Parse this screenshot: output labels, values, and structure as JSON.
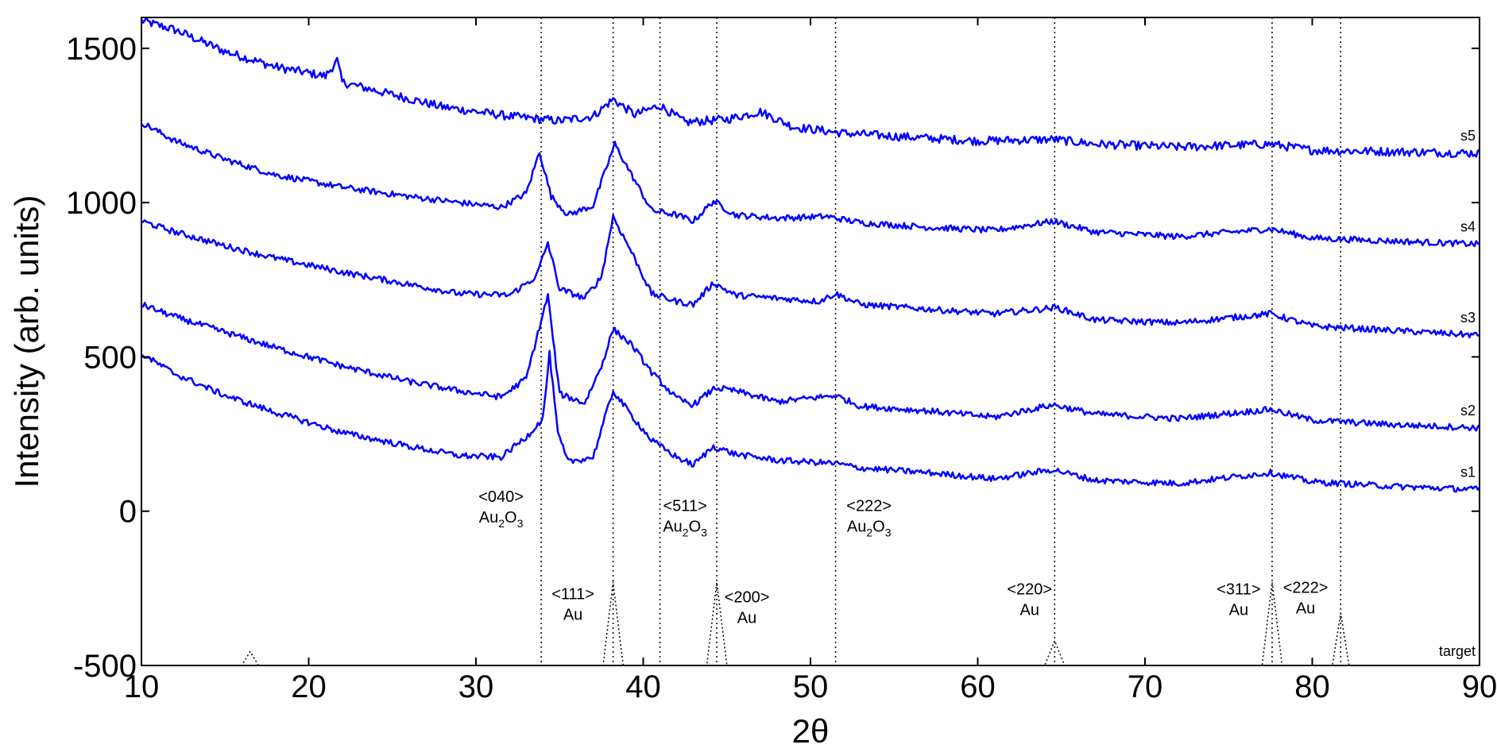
{
  "chart_data": {
    "type": "line",
    "title": "",
    "xlabel": "2θ",
    "ylabel": "Intensity (arb. units)",
    "xlim": [
      10,
      90
    ],
    "ylim": [
      -500,
      1600
    ],
    "xticks": [
      10,
      20,
      30,
      40,
      50,
      60,
      70,
      80,
      90
    ],
    "yticks": [
      -500,
      0,
      500,
      1000,
      1500
    ],
    "grid": false,
    "line_color": "#0000ff",
    "reference_color": "#000000",
    "series": [
      {
        "name": "s5",
        "points": [
          [
            10,
            1590
          ],
          [
            12,
            1560
          ],
          [
            15,
            1490
          ],
          [
            18,
            1440
          ],
          [
            21,
            1410
          ],
          [
            21.7,
            1460
          ],
          [
            22,
            1390
          ],
          [
            25,
            1350
          ],
          [
            28,
            1310
          ],
          [
            32,
            1280
          ],
          [
            35,
            1265
          ],
          [
            37,
            1280
          ],
          [
            38.2,
            1335
          ],
          [
            39.5,
            1285
          ],
          [
            41,
            1315
          ],
          [
            42.5,
            1260
          ],
          [
            45,
            1270
          ],
          [
            47,
            1295
          ],
          [
            49,
            1245
          ],
          [
            52,
            1225
          ],
          [
            55,
            1215
          ],
          [
            60,
            1200
          ],
          [
            64.5,
            1205
          ],
          [
            67,
            1190
          ],
          [
            72,
            1180
          ],
          [
            77.5,
            1190
          ],
          [
            80,
            1170
          ],
          [
            85,
            1165
          ],
          [
            90,
            1160
          ]
        ]
      },
      {
        "name": "s4",
        "points": [
          [
            10,
            1260
          ],
          [
            12,
            1200
          ],
          [
            15,
            1140
          ],
          [
            18,
            1090
          ],
          [
            22,
            1050
          ],
          [
            26,
            1020
          ],
          [
            29,
            1000
          ],
          [
            31.5,
            985
          ],
          [
            33,
            1030
          ],
          [
            33.8,
            1165
          ],
          [
            34.5,
            1020
          ],
          [
            35.5,
            960
          ],
          [
            37,
            990
          ],
          [
            38.3,
            1190
          ],
          [
            39.3,
            1090
          ],
          [
            40.5,
            975
          ],
          [
            42,
            960
          ],
          [
            43,
            940
          ],
          [
            44.2,
            1005
          ],
          [
            45.5,
            960
          ],
          [
            48,
            950
          ],
          [
            51,
            955
          ],
          [
            53,
            935
          ],
          [
            57,
            920
          ],
          [
            61,
            910
          ],
          [
            64.5,
            940
          ],
          [
            67,
            905
          ],
          [
            72,
            890
          ],
          [
            77.5,
            915
          ],
          [
            80,
            885
          ],
          [
            85,
            875
          ],
          [
            90,
            865
          ]
        ]
      },
      {
        "name": "s3",
        "points": [
          [
            10,
            940
          ],
          [
            12,
            905
          ],
          [
            15,
            860
          ],
          [
            18,
            820
          ],
          [
            22,
            775
          ],
          [
            26,
            735
          ],
          [
            29,
            705
          ],
          [
            32,
            700
          ],
          [
            33.6,
            760
          ],
          [
            34.3,
            870
          ],
          [
            35,
            720
          ],
          [
            36.5,
            690
          ],
          [
            37.5,
            760
          ],
          [
            38.2,
            955
          ],
          [
            39.3,
            840
          ],
          [
            40.5,
            705
          ],
          [
            42,
            680
          ],
          [
            43,
            670
          ],
          [
            44.2,
            740
          ],
          [
            45.5,
            700
          ],
          [
            48,
            690
          ],
          [
            50.5,
            680
          ],
          [
            51.5,
            705
          ],
          [
            53,
            670
          ],
          [
            57,
            655
          ],
          [
            61,
            640
          ],
          [
            64.7,
            660
          ],
          [
            67,
            620
          ],
          [
            72,
            610
          ],
          [
            77.5,
            640
          ],
          [
            80,
            600
          ],
          [
            85,
            585
          ],
          [
            90,
            570
          ]
        ]
      },
      {
        "name": "s2",
        "points": [
          [
            10,
            670
          ],
          [
            12,
            630
          ],
          [
            15,
            580
          ],
          [
            18,
            530
          ],
          [
            22,
            470
          ],
          [
            26,
            420
          ],
          [
            29,
            390
          ],
          [
            31.5,
            370
          ],
          [
            33,
            430
          ],
          [
            34.3,
            700
          ],
          [
            35,
            380
          ],
          [
            36.5,
            350
          ],
          [
            37.5,
            470
          ],
          [
            38.2,
            590
          ],
          [
            39.3,
            540
          ],
          [
            40.5,
            450
          ],
          [
            42,
            365
          ],
          [
            43,
            345
          ],
          [
            44.3,
            400
          ],
          [
            45.5,
            390
          ],
          [
            48,
            355
          ],
          [
            51.5,
            375
          ],
          [
            53,
            340
          ],
          [
            57,
            325
          ],
          [
            61,
            305
          ],
          [
            64.5,
            345
          ],
          [
            67,
            315
          ],
          [
            72,
            300
          ],
          [
            77.5,
            330
          ],
          [
            80,
            295
          ],
          [
            85,
            280
          ],
          [
            90,
            270
          ]
        ]
      },
      {
        "name": "s1",
        "points": [
          [
            10,
            510
          ],
          [
            12,
            445
          ],
          [
            15,
            375
          ],
          [
            18,
            320
          ],
          [
            22,
            255
          ],
          [
            26,
            210
          ],
          [
            29,
            180
          ],
          [
            31.5,
            175
          ],
          [
            33,
            240
          ],
          [
            34,
            300
          ],
          [
            34.4,
            510
          ],
          [
            34.9,
            250
          ],
          [
            35.5,
            160
          ],
          [
            37,
            175
          ],
          [
            38.2,
            390
          ],
          [
            39.3,
            310
          ],
          [
            40.5,
            230
          ],
          [
            42,
            175
          ],
          [
            43,
            150
          ],
          [
            44.2,
            210
          ],
          [
            45.5,
            185
          ],
          [
            48,
            165
          ],
          [
            51.5,
            155
          ],
          [
            53,
            140
          ],
          [
            57,
            125
          ],
          [
            61,
            105
          ],
          [
            64.5,
            135
          ],
          [
            67,
            100
          ],
          [
            72,
            90
          ],
          [
            77.5,
            125
          ],
          [
            80,
            95
          ],
          [
            85,
            80
          ],
          [
            90,
            70
          ]
        ]
      },
      {
        "name": "target",
        "points": [
          [
            10,
            -500
          ],
          [
            16,
            -500
          ],
          [
            16.5,
            -455
          ],
          [
            17,
            -500
          ],
          [
            33.9,
            -500
          ],
          [
            37.6,
            -500
          ],
          [
            38.2,
            -230
          ],
          [
            38.8,
            -500
          ],
          [
            43.8,
            -500
          ],
          [
            44.4,
            -230
          ],
          [
            45,
            -500
          ],
          [
            64,
            -500
          ],
          [
            64.6,
            -420
          ],
          [
            65.2,
            -500
          ],
          [
            77,
            -500
          ],
          [
            77.6,
            -230
          ],
          [
            78.2,
            -500
          ],
          [
            81.2,
            -500
          ],
          [
            81.7,
            -330
          ],
          [
            82.2,
            -500
          ],
          [
            90,
            -500
          ]
        ]
      }
    ],
    "reference_lines_x": [
      33.9,
      38.2,
      41.0,
      44.4,
      51.5,
      64.6,
      77.6,
      81.7
    ],
    "annotations": [
      {
        "miller": "<040>",
        "phase": "Au2O3",
        "phase_main": "Au",
        "phase_sub1": "2",
        "phase_mid": "O",
        "phase_sub2": "3",
        "x": 31.5,
        "y": 30
      },
      {
        "miller": "<511>",
        "phase": "Au2O3",
        "phase_main": "Au",
        "phase_sub1": "2",
        "phase_mid": "O",
        "phase_sub2": "3",
        "x": 42.5,
        "y": 0
      },
      {
        "miller": "<222>",
        "phase": "Au2O3",
        "phase_main": "Au",
        "phase_sub1": "2",
        "phase_mid": "O",
        "phase_sub2": "3",
        "x": 53.5,
        "y": 0
      },
      {
        "miller": "<111>",
        "phase": "Au",
        "x": 35.8,
        "y": -285
      },
      {
        "miller": "<200>",
        "phase": "Au",
        "x": 46.2,
        "y": -295
      },
      {
        "miller": "<220>",
        "phase": "Au",
        "x": 63.1,
        "y": -270
      },
      {
        "miller": "<311>",
        "phase": "Au",
        "x": 75.6,
        "y": -270
      },
      {
        "miller": "<222>",
        "phase": "Au",
        "x": 79.6,
        "y": -265
      }
    ]
  }
}
